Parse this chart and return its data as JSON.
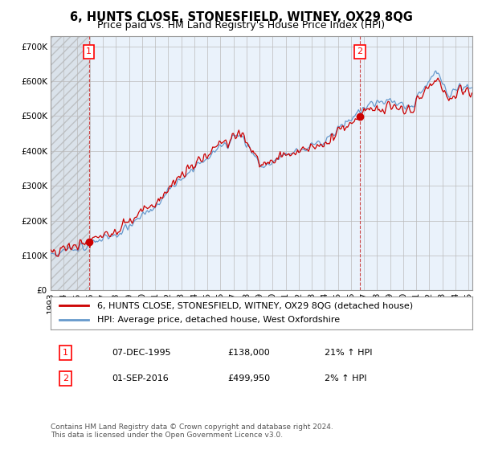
{
  "title": "6, HUNTS CLOSE, STONESFIELD, WITNEY, OX29 8QG",
  "subtitle": "Price paid vs. HM Land Registry's House Price Index (HPI)",
  "ytick_vals": [
    0,
    100000,
    200000,
    300000,
    400000,
    500000,
    600000,
    700000
  ],
  "ylim": [
    0,
    730000
  ],
  "xlim_start": 1993.0,
  "xlim_end": 2025.3,
  "hpi_color": "#6699CC",
  "price_color": "#CC0000",
  "bg_color": "#EAF2FB",
  "hatch_color": "#D8D8D8",
  "grid_color": "#BBBBBB",
  "vline_color": "#CC4444",
  "sale1_year": 1995.93,
  "sale1_price": 138000,
  "sale2_year": 2016.67,
  "sale2_price": 499950,
  "legend_line1": "6, HUNTS CLOSE, STONESFIELD, WITNEY, OX29 8QG (detached house)",
  "legend_line2": "HPI: Average price, detached house, West Oxfordshire",
  "ann1_num": "1",
  "ann1_date": "07-DEC-1995",
  "ann1_price": "£138,000",
  "ann1_hpi": "21% ↑ HPI",
  "ann2_num": "2",
  "ann2_date": "01-SEP-2016",
  "ann2_price": "£499,950",
  "ann2_hpi": "2% ↑ HPI",
  "footer_line1": "Contains HM Land Registry data © Crown copyright and database right 2024.",
  "footer_line2": "This data is licensed under the Open Government Licence v3.0.",
  "title_fontsize": 10.5,
  "subtitle_fontsize": 9,
  "tick_fontsize": 7.5,
  "legend_fontsize": 8,
  "ann_fontsize": 8,
  "footer_fontsize": 6.5
}
